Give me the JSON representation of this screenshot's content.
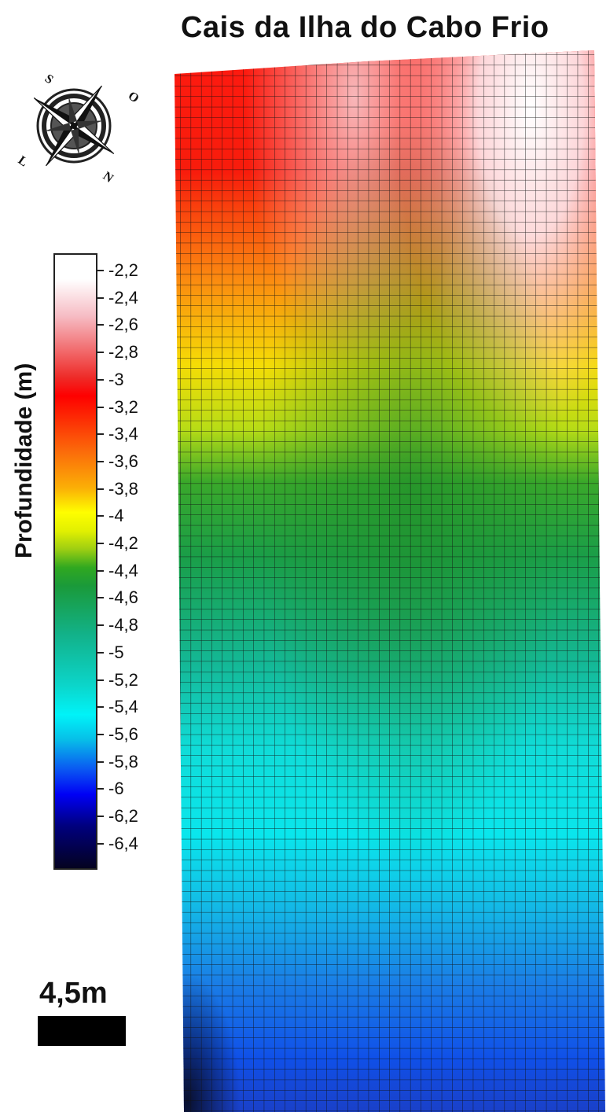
{
  "title": "Cais da Ilha do Cabo Frio",
  "compass": {
    "icon": "compass-rose-icon",
    "labels": {
      "north": "N",
      "south": "S",
      "east": "O",
      "west": "L"
    }
  },
  "colorbar": {
    "label": "Profundidade (m)",
    "ticks": [
      "-2,2",
      "-2,4",
      "-2,6",
      "-2,8",
      "-3",
      "-3,2",
      "-3,4",
      "-3,6",
      "-3,8",
      "-4",
      "-4,2",
      "-4,4",
      "-4,6",
      "-4,8",
      "-5",
      "-5,2",
      "-5,4",
      "-5,6",
      "-5,8",
      "-6",
      "-6,2",
      "-6,4"
    ],
    "colors": [
      "#ffffff",
      "#f6bcc4",
      "#fe0000",
      "#fb6a0a",
      "#fefe00",
      "#30a820",
      "#12b28a",
      "#00f3f8",
      "#0a55f2",
      "#0000f5",
      "#040220"
    ]
  },
  "scale": {
    "label": "4,5m"
  },
  "map": {
    "grid": true
  }
}
